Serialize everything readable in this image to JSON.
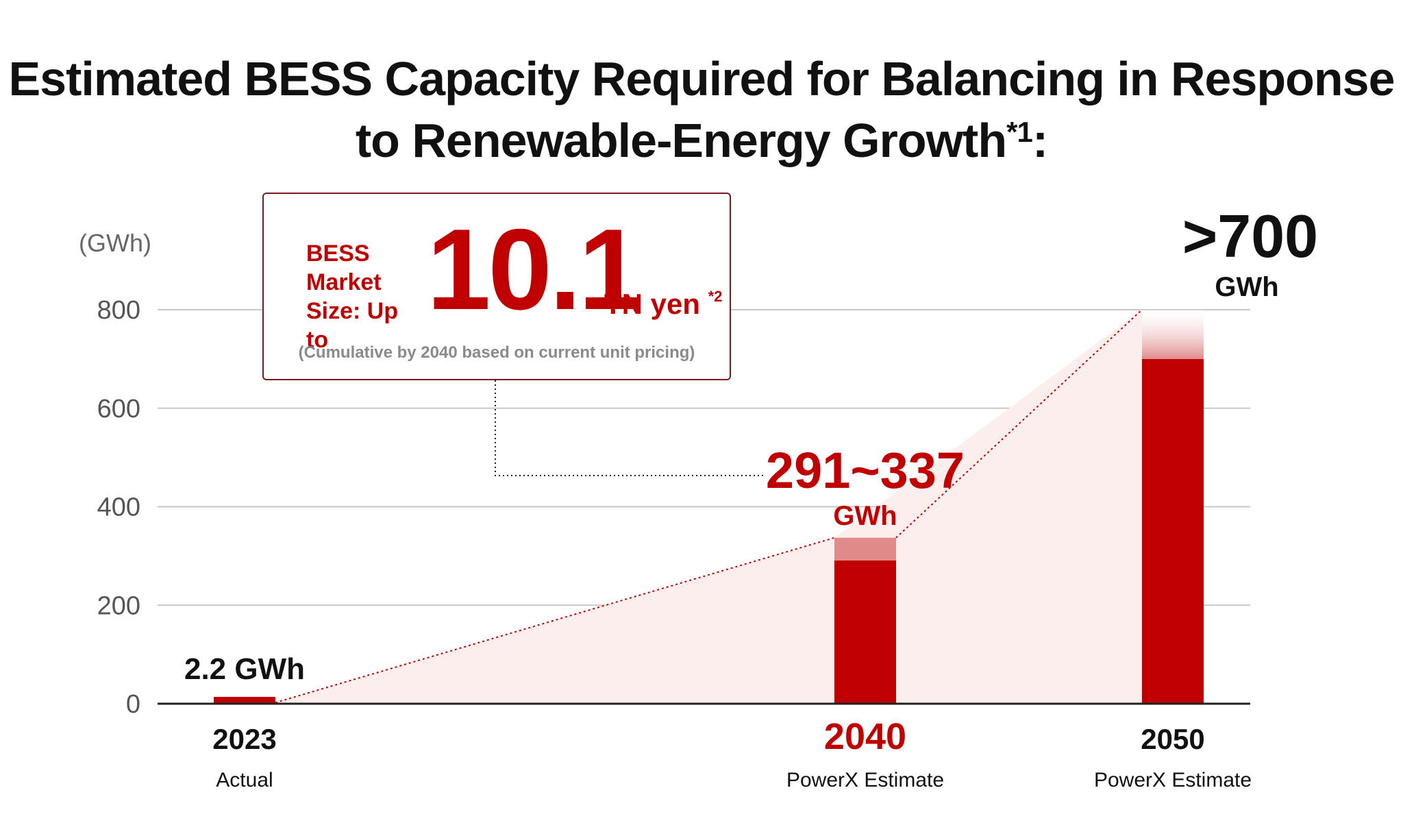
{
  "title": {
    "main": "Estimated BESS Capacity Required for Balancing in Response to Renewable-Energy Growth",
    "footnote": "*1",
    "suffix": ":"
  },
  "callout": {
    "label": "BESS\nMarket\nSize: Up to",
    "value": "10.1",
    "unit": "TN yen",
    "footnote": "*2",
    "note": "(Cumulative by 2040 based on current unit pricing)"
  },
  "colors": {
    "bar": "#c00000",
    "bar_light": "#e08a8a",
    "area": "#fdeeee",
    "grid": "#c8c8c8",
    "axis_text": "#555555"
  },
  "chart_data": {
    "type": "bar",
    "ylabel": "(GWh)",
    "ylim": [
      0,
      800
    ],
    "yticks": [
      0,
      200,
      400,
      600,
      800
    ],
    "grid": true,
    "categories": [
      "2023",
      "2040",
      "2050"
    ],
    "sublabels": [
      "Actual",
      "PowerX Estimate",
      "PowerX Estimate"
    ],
    "values_low": [
      2.2,
      291,
      700
    ],
    "values_high": [
      2.2,
      337,
      800
    ],
    "data_labels": [
      {
        "value": "2.2 GWh",
        "unit": ""
      },
      {
        "value": "291~337",
        "unit": "GWh"
      },
      {
        "value": ">700",
        "unit": "GWh"
      }
    ]
  }
}
